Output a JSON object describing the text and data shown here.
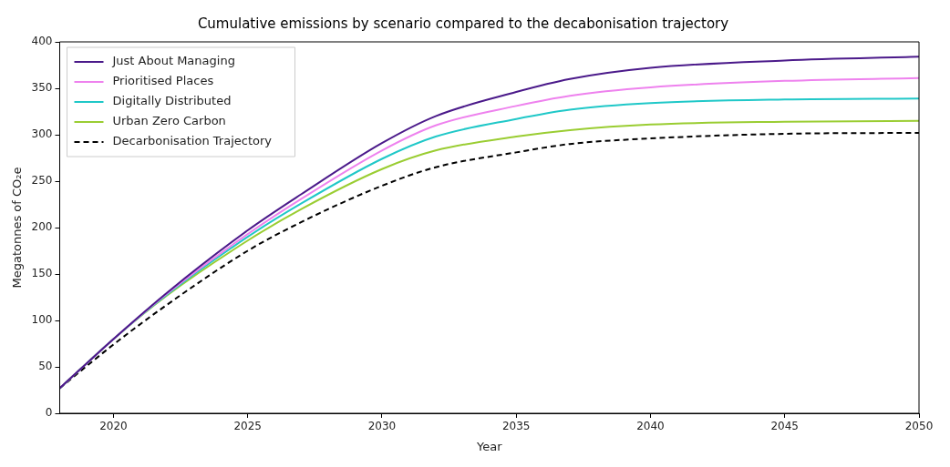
{
  "chart_data": {
    "type": "line",
    "title": "Cumulative emissions by scenario compared to the decabonisation trajectory",
    "xlabel": "Year",
    "ylabel": "Megatonnes of CO₂e",
    "x": [
      2018,
      2020,
      2022,
      2025,
      2027,
      2030,
      2032,
      2035,
      2037,
      2040,
      2045,
      2050
    ],
    "series": [
      {
        "name": "Just About Managing",
        "color": "#4b1a8a",
        "values": [
          27,
          80,
          130,
          197,
          236,
          291,
          320,
          346,
          360,
          372,
          380,
          384
        ]
      },
      {
        "name": "Prioritised Places",
        "color": "#ee82ee",
        "values": [
          27,
          80,
          129,
          193,
          231,
          283,
          310,
          331,
          342,
          351,
          358,
          361
        ]
      },
      {
        "name": "Digitally Distributed",
        "color": "#20c8c8",
        "values": [
          27,
          80,
          128,
          190,
          226,
          274,
          298,
          317,
          327,
          334,
          338,
          339
        ]
      },
      {
        "name": "Urban Zero Carbon",
        "color": "#9acd32",
        "values": [
          27,
          80,
          127,
          186,
          220,
          263,
          283,
          298,
          305,
          311,
          314,
          315
        ]
      },
      {
        "name": "Decarbonisation Trajectory",
        "color": "#000000",
        "values": [
          27,
          74,
          117,
          175,
          206,
          245,
          265,
          281,
          290,
          296,
          301,
          302
        ],
        "line_style": "dashed"
      }
    ],
    "xlim": [
      2018,
      2050
    ],
    "xticks": [
      2020,
      2025,
      2030,
      2035,
      2040,
      2045,
      2050
    ],
    "ylim": [
      0,
      400
    ],
    "yticks": [
      0,
      50,
      100,
      150,
      200,
      250,
      300,
      350,
      400
    ],
    "legend": "top left",
    "grid": false,
    "marker": "none"
  }
}
